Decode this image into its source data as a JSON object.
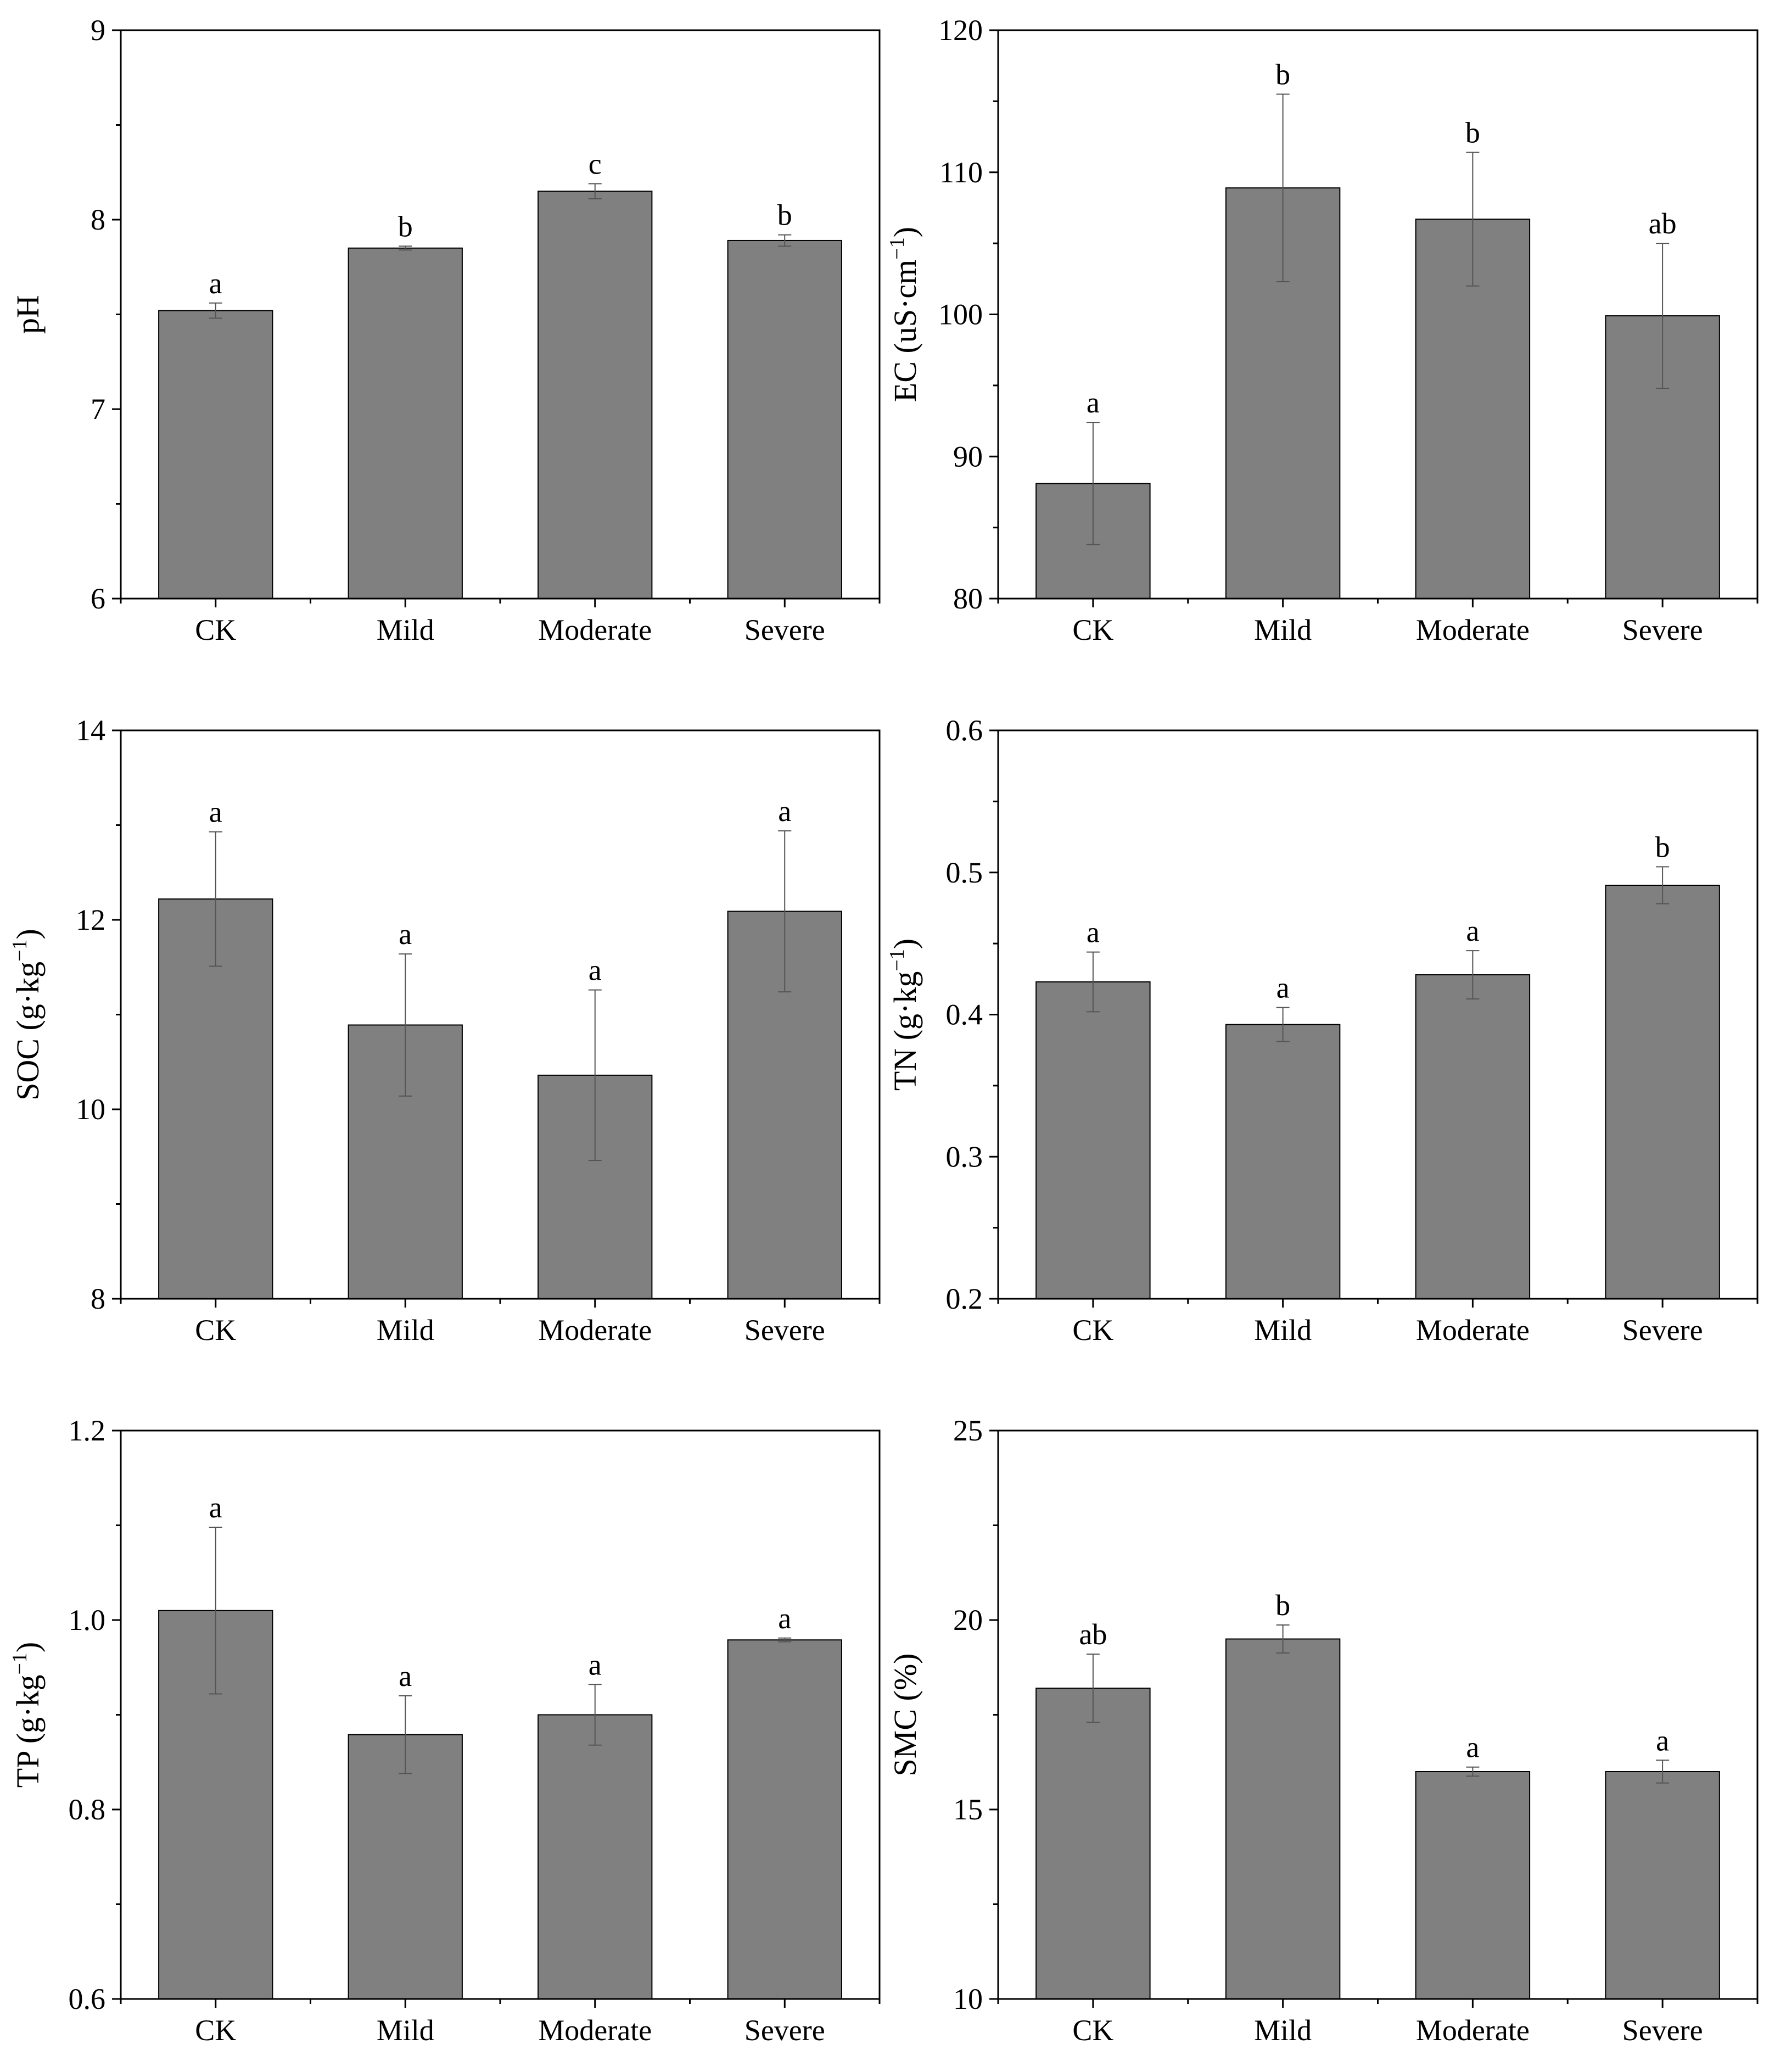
{
  "colors": {
    "bar_fill": "#808080",
    "bar_stroke": "#000000",
    "error": "#555555"
  },
  "chart_data": [
    {
      "type": "bar",
      "title": "",
      "xlabel": "",
      "ylabel": "pH",
      "categories": [
        "CK",
        "Mild",
        "Moderate",
        "Severe"
      ],
      "values": [
        7.52,
        7.85,
        8.15,
        7.89
      ],
      "errors": [
        0.04,
        0.01,
        0.04,
        0.03
      ],
      "letters": [
        "a",
        "b",
        "c",
        "b"
      ],
      "ylim": [
        6,
        9
      ],
      "yticks": [
        6,
        7,
        8,
        9
      ],
      "ytick_labels": [
        "6",
        "7",
        "8",
        "9"
      ]
    },
    {
      "type": "bar",
      "title": "",
      "xlabel": "",
      "ylabel": "EC (uS·cm",
      "ylabel_sup": "−1",
      "ylabel_end": ")",
      "categories": [
        "CK",
        "Mild",
        "Moderate",
        "Severe"
      ],
      "values": [
        88.1,
        108.9,
        106.7,
        99.9
      ],
      "errors": [
        4.3,
        6.6,
        4.7,
        5.1
      ],
      "letters": [
        "a",
        "b",
        "b",
        "ab"
      ],
      "ylim": [
        80,
        120
      ],
      "yticks": [
        80,
        90,
        100,
        110,
        120
      ],
      "ytick_labels": [
        "80",
        "90",
        "100",
        "110",
        "120"
      ]
    },
    {
      "type": "bar",
      "title": "",
      "xlabel": "",
      "ylabel": "SOC (g·kg",
      "ylabel_sup": "−1",
      "ylabel_end": ")",
      "categories": [
        "CK",
        "Mild",
        "Moderate",
        "Severe"
      ],
      "values": [
        12.22,
        10.89,
        10.36,
        12.09
      ],
      "errors": [
        0.71,
        0.75,
        0.9,
        0.85
      ],
      "letters": [
        "a",
        "a",
        "a",
        "a"
      ],
      "ylim": [
        8,
        14
      ],
      "yticks": [
        8,
        10,
        12,
        14
      ],
      "ytick_labels": [
        "8",
        "10",
        "12",
        "14"
      ]
    },
    {
      "type": "bar",
      "title": "",
      "xlabel": "",
      "ylabel": "TN (g·kg",
      "ylabel_sup": "−1",
      "ylabel_end": ")",
      "categories": [
        "CK",
        "Mild",
        "Moderate",
        "Severe"
      ],
      "values": [
        0.423,
        0.393,
        0.428,
        0.491
      ],
      "errors": [
        0.021,
        0.012,
        0.017,
        0.013
      ],
      "letters": [
        "a",
        "a",
        "a",
        "b"
      ],
      "ylim": [
        0.2,
        0.6
      ],
      "yticks": [
        0.2,
        0.3,
        0.4,
        0.5,
        0.6
      ],
      "ytick_labels": [
        "0.2",
        "0.3",
        "0.4",
        "0.5",
        "0.6"
      ]
    },
    {
      "type": "bar",
      "title": "",
      "xlabel": "",
      "ylabel": "TP (g·kg",
      "ylabel_sup": "−1",
      "ylabel_end": ")",
      "categories": [
        "CK",
        "Mild",
        "Moderate",
        "Severe"
      ],
      "values": [
        1.01,
        0.879,
        0.9,
        0.979
      ],
      "errors": [
        0.088,
        0.041,
        0.032,
        0.002
      ],
      "letters": [
        "a",
        "a",
        "a",
        "a"
      ],
      "ylim": [
        0.6,
        1.2
      ],
      "yticks": [
        0.6,
        0.8,
        1.0,
        1.2
      ],
      "ytick_labels": [
        "0.6",
        "0.8",
        "1.0",
        "1.2"
      ]
    },
    {
      "type": "bar",
      "title": "",
      "xlabel": "",
      "ylabel": "SMC (%)",
      "categories": [
        "CK",
        "Mild",
        "Moderate",
        "Severe"
      ],
      "values": [
        18.2,
        19.5,
        16.0,
        16.0
      ],
      "errors": [
        0.9,
        0.37,
        0.12,
        0.3
      ],
      "letters": [
        "ab",
        "b",
        "a",
        "a"
      ],
      "ylim": [
        10,
        25
      ],
      "yticks": [
        10,
        15,
        20,
        25
      ],
      "ytick_labels": [
        "10",
        "15",
        "20",
        "25"
      ]
    }
  ]
}
